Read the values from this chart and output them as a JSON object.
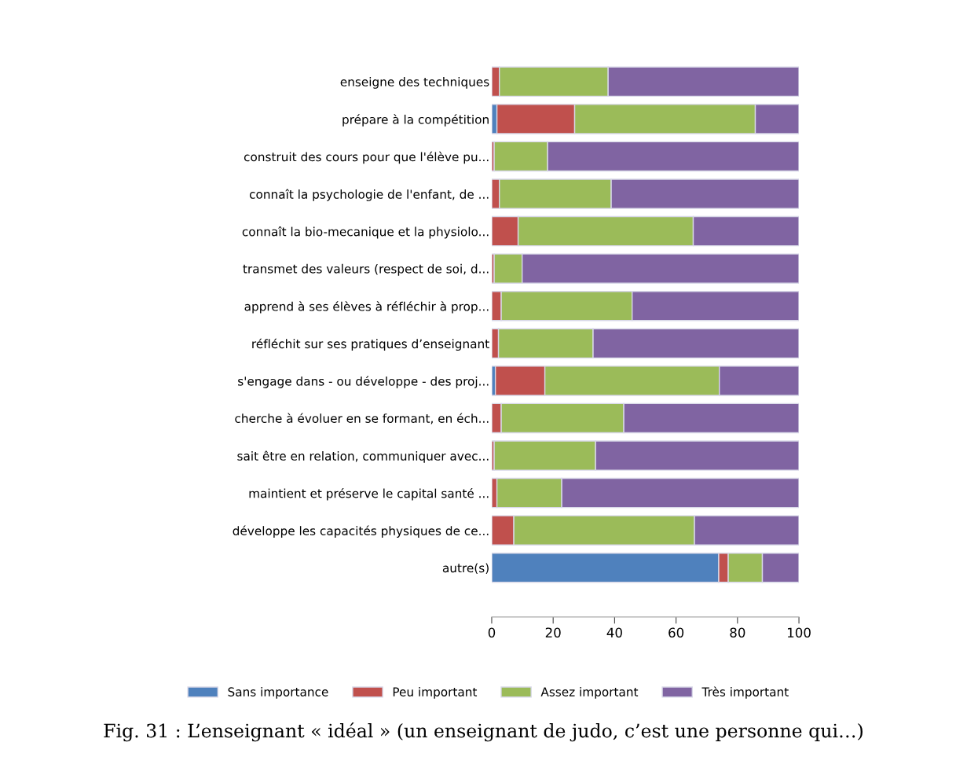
{
  "chart_data": {
    "type": "bar",
    "orientation": "horizontal",
    "stacked": true,
    "categories": [
      "enseigne des techniques",
      "prépare à la compétition",
      "construit des cours pour que l'élève pu...",
      "connaît la psychologie de l'enfant, de ...",
      "connaît la bio-mecanique et la physiolo...",
      "transmet des valeurs (respect de soi, d...",
      "apprend à ses élèves à réfléchir à prop...",
      "réfléchit sur ses pratiques d’enseignant",
      "s'engage dans - ou développe - des proj...",
      "cherche à évoluer en se formant, en éch...",
      "sait être en relation, communiquer avec...",
      "maintient et préserve le capital santé ...",
      "développe les capacités physiques de ce...",
      "autre(s)"
    ],
    "series": [
      {
        "name": "Sans importance",
        "color": "#4f81bd",
        "values": [
          0,
          1.7,
          0,
          0,
          0,
          0,
          0,
          0,
          1.2,
          0,
          0,
          0,
          0,
          73.9
        ]
      },
      {
        "name": "Peu important",
        "color": "#c0504d",
        "values": [
          2.5,
          25.3,
          0.8,
          2.5,
          8.6,
          0.8,
          3.1,
          2.2,
          16.1,
          3.1,
          0.8,
          1.7,
          7.2,
          3.1
        ]
      },
      {
        "name": "Assez important",
        "color": "#9bbb59",
        "values": [
          35.4,
          58.8,
          17.4,
          36.4,
          57.0,
          9.1,
          42.6,
          30.8,
          56.8,
          39.9,
          33.0,
          21.1,
          58.8,
          11.1
        ]
      },
      {
        "name": "Très important",
        "color": "#8064a2",
        "values": [
          62.1,
          14.2,
          81.8,
          61.1,
          34.4,
          90.1,
          54.3,
          67.0,
          25.9,
          57.0,
          66.2,
          77.2,
          34.0,
          11.9
        ]
      }
    ],
    "xlim": [
      0,
      100
    ],
    "xticks": [
      0,
      20,
      40,
      60,
      80,
      100
    ],
    "grid": false,
    "legend": "bottom",
    "annotations": [
      "Fig. 31 : L’enseignant « idéal » (un enseignant de judo, c’est une personne qui…)"
    ]
  }
}
